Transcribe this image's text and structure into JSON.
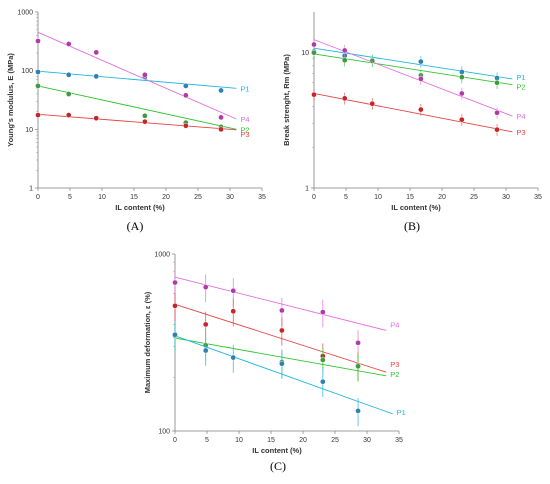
{
  "chart_data": [
    {
      "type": "scatter",
      "panel_label": "(A)",
      "xlabel": "IL content (%)",
      "ylabel": "Young's modulus, E (MPa)",
      "xlim": [
        0,
        35
      ],
      "ylim": [
        1,
        1000
      ],
      "yscale": "log",
      "xticks": [
        0,
        5,
        10,
        15,
        20,
        25,
        30,
        35
      ],
      "yticks": [
        1,
        10,
        100,
        1000
      ],
      "grid": false,
      "legend": "labels at line ends",
      "series": [
        {
          "name": "P1",
          "color": "#1fb6e0",
          "marker_color": "#2e7fb5",
          "x": [
            0,
            4.8,
            9.1,
            16.7,
            23.1,
            28.6
          ],
          "y": [
            95,
            85,
            80,
            78,
            55,
            46
          ],
          "fit": [
            [
              0,
              98
            ],
            [
              31,
              50
            ]
          ]
        },
        {
          "name": "P4",
          "color": "#e36fde",
          "marker_color": "#b03aa8",
          "x": [
            0,
            4.8,
            9.1,
            16.7,
            23.1,
            28.6
          ],
          "y": [
            320,
            285,
            205,
            85,
            38,
            16
          ],
          "fit": [
            [
              0,
              450
            ],
            [
              31,
              15
            ]
          ]
        },
        {
          "name": "P2",
          "color": "#2ec52e",
          "marker_color": "#3f9a3f",
          "x": [
            0,
            4.8,
            9.1,
            16.7,
            23.1,
            28.6
          ],
          "y": [
            55,
            40,
            null,
            17,
            13,
            11
          ],
          "fit": [
            [
              0,
              55
            ],
            [
              31,
              10
            ]
          ]
        },
        {
          "name": "P3",
          "color": "#e54545",
          "marker_color": "#c4262b",
          "x": [
            0,
            4.8,
            9.1,
            16.7,
            23.1,
            28.6
          ],
          "y": [
            17.5,
            17.5,
            15.5,
            13.5,
            11.5,
            10
          ],
          "fit": [
            [
              0,
              18
            ],
            [
              31,
              9.8
            ]
          ]
        }
      ]
    },
    {
      "type": "scatter",
      "panel_label": "(B)",
      "xlabel": "IL content (%)",
      "ylabel": "Break strenght, Rm (MPa)",
      "xlim": [
        0,
        35
      ],
      "ylim": [
        1,
        20
      ],
      "yscale": "log",
      "xticks": [
        0,
        5,
        10,
        15,
        20,
        25,
        30,
        35
      ],
      "yticks": [
        1,
        10
      ],
      "grid": false,
      "legend": "labels at line ends",
      "series": [
        {
          "name": "P1",
          "color": "#1fb6e0",
          "marker_color": "#2e7fb5",
          "x": [
            0,
            4.8,
            9.1,
            16.7,
            23.1,
            28.6
          ],
          "y": [
            10.2,
            9.5,
            8.8,
            8.6,
            7.2,
            6.5
          ],
          "fit": [
            [
              0,
              10.8
            ],
            [
              31,
              6.4
            ]
          ]
        },
        {
          "name": "P2",
          "color": "#2ec52e",
          "marker_color": "#3f9a3f",
          "x": [
            0,
            4.8,
            9.1,
            16.7,
            23.1,
            28.6
          ],
          "y": [
            10,
            8.8,
            8.7,
            6.8,
            6.6,
            6
          ],
          "fit": [
            [
              0,
              9.8
            ],
            [
              31,
              5.8
            ]
          ]
        },
        {
          "name": "P4",
          "color": "#e36fde",
          "marker_color": "#b03aa8",
          "x": [
            0,
            4.8,
            9.1,
            16.7,
            23.1,
            28.6
          ],
          "y": [
            11.5,
            10.4,
            null,
            6.4,
            5,
            3.6
          ],
          "fit": [
            [
              0,
              12.5
            ],
            [
              31,
              3.4
            ]
          ]
        },
        {
          "name": "P3",
          "color": "#e54545",
          "marker_color": "#c4262b",
          "x": [
            0,
            4.8,
            9.1,
            16.7,
            23.1,
            28.6
          ],
          "y": [
            4.9,
            4.6,
            4.2,
            3.8,
            3.2,
            2.7
          ],
          "fit": [
            [
              0,
              5.0
            ],
            [
              31,
              2.6
            ]
          ]
        }
      ]
    },
    {
      "type": "scatter",
      "panel_label": "(C)",
      "xlabel": "IL content (%)",
      "ylabel": "Maximum deformation, ε (%)",
      "xlim": [
        0,
        35
      ],
      "ylim": [
        100,
        1000
      ],
      "yscale": "log",
      "xticks": [
        0,
        5,
        10,
        15,
        20,
        25,
        30,
        35
      ],
      "yticks": [
        100,
        1000
      ],
      "grid": false,
      "legend": "labels at line ends",
      "series": [
        {
          "name": "P4",
          "color": "#e36fde",
          "marker_color": "#b03aa8",
          "x": [
            0,
            4.8,
            9.1,
            16.7,
            23.1,
            28.6
          ],
          "y": [
            690,
            650,
            620,
            480,
            470,
            315
          ],
          "fit": [
            [
              0,
              740
            ],
            [
              33,
              370
            ]
          ]
        },
        {
          "name": "P3",
          "color": "#e54545",
          "marker_color": "#c4262b",
          "x": [
            0,
            4.8,
            9.1,
            16.7,
            23.1,
            28.6
          ],
          "y": [
            510,
            400,
            475,
            370,
            265,
            235
          ],
          "fit": [
            [
              0,
              520
            ],
            [
              33,
              215
            ]
          ]
        },
        {
          "name": "P2",
          "color": "#2ec52e",
          "marker_color": "#3f9a3f",
          "x": [
            0,
            4.8,
            9.1,
            16.7,
            23.1,
            28.6
          ],
          "y": [
            345,
            305,
            null,
            245,
            252,
            232
          ],
          "fit": [
            [
              0,
              335
            ],
            [
              33,
              205
            ]
          ]
        },
        {
          "name": "P1",
          "color": "#1fb6e0",
          "marker_color": "#2e7fb5",
          "x": [
            0,
            4.8,
            9.1,
            16.7,
            23.1,
            28.6
          ],
          "y": [
            350,
            285,
            260,
            240,
            190,
            130
          ],
          "fit": [
            [
              0,
              345
            ],
            [
              34,
              125
            ]
          ]
        }
      ]
    }
  ]
}
